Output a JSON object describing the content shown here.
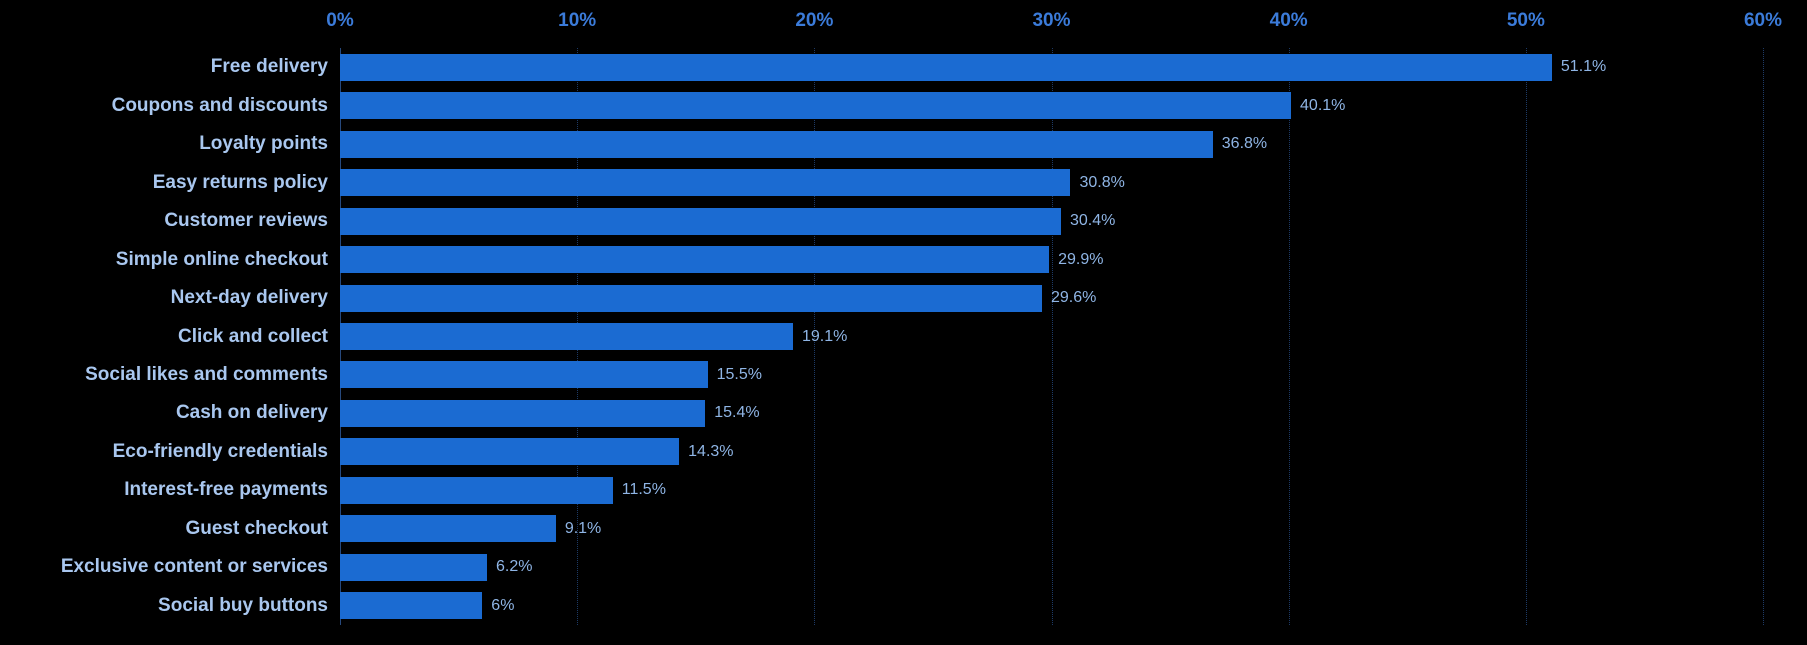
{
  "chart_data": {
    "type": "bar",
    "orientation": "horizontal",
    "title": "",
    "xlabel": "",
    "ylabel": "",
    "grid": "vertical-dotted",
    "legend": "none",
    "x_axis": {
      "position": "top",
      "min": 0,
      "max": 60,
      "ticks": [
        0,
        10,
        20,
        30,
        40,
        50,
        60
      ],
      "tick_labels": [
        "0%",
        "10%",
        "20%",
        "30%",
        "40%",
        "50%",
        "60%"
      ]
    },
    "categories": [
      "Free delivery",
      "Coupons and discounts",
      "Loyalty points",
      "Easy returns policy",
      "Customer reviews",
      "Simple online checkout",
      "Next-day delivery",
      "Click and collect",
      "Social likes and comments",
      "Cash on delivery",
      "Eco-friendly credentials",
      "Interest-free payments",
      "Guest checkout",
      "Exclusive content or services",
      "Social buy buttons"
    ],
    "values": [
      51.1,
      40.1,
      36.8,
      30.8,
      30.4,
      29.9,
      29.6,
      19.1,
      15.5,
      15.4,
      14.3,
      11.5,
      9.1,
      6.2,
      6
    ],
    "value_labels": [
      "51.1%",
      "40.1%",
      "36.8%",
      "30.8%",
      "30.4%",
      "29.9%",
      "29.6%",
      "19.1%",
      "15.5%",
      "15.4%",
      "14.3%",
      "11.5%",
      "9.1%",
      "6.2%",
      "6%"
    ]
  },
  "colors": {
    "background": "#000000",
    "bar": "#1b6bd2",
    "category_label": "#a9c7ef",
    "value_label": "#8fb5e5",
    "tick_label": "#3b7bd9",
    "gridline": "#1d3a66",
    "axis_line": "#27497d"
  }
}
